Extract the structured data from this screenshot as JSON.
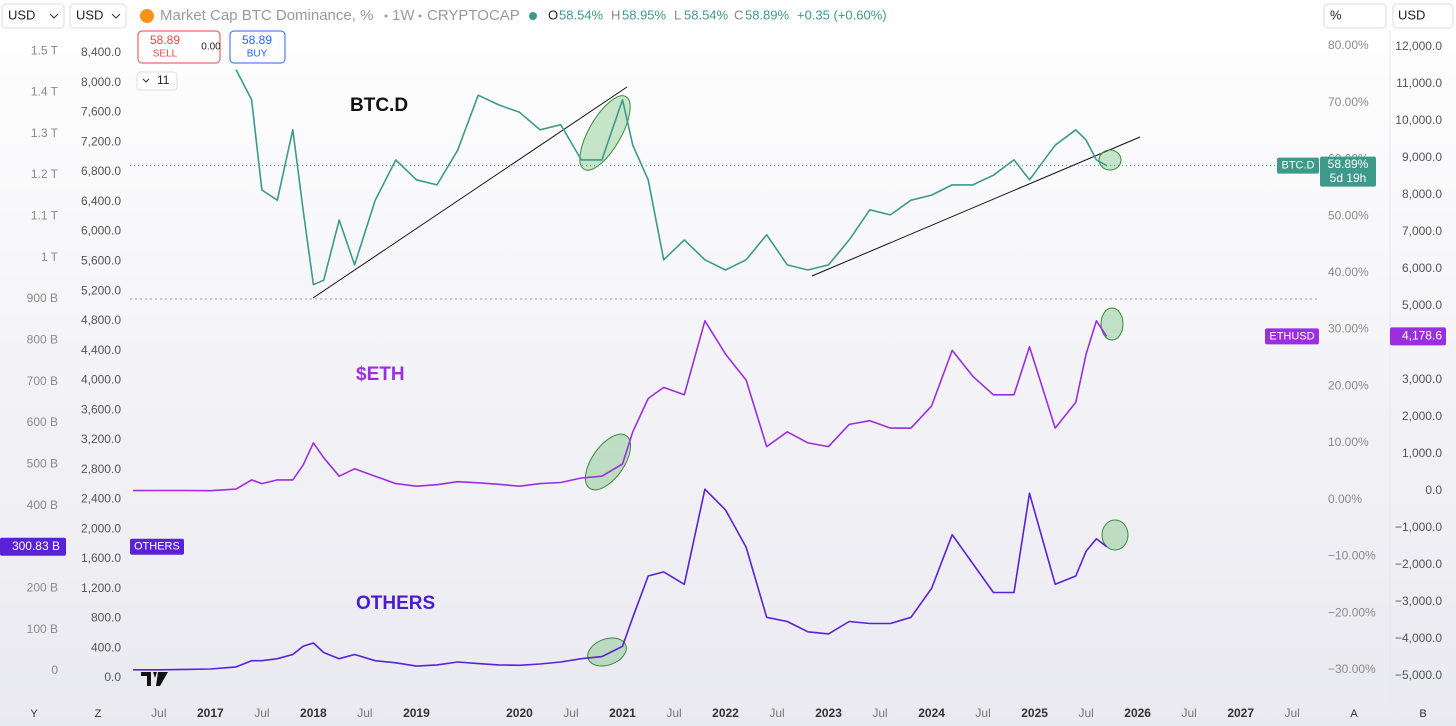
{
  "toolbar": {
    "currency_left": "USD",
    "currency_second": "USD",
    "title": "Market Cap BTC Dominance, %",
    "interval": "1W",
    "exchange": "CRYPTOCAP",
    "open_label": "O",
    "open": "58.54%",
    "high_label": "H",
    "high": "58.95%",
    "low_label": "L",
    "low": "58.54%",
    "close_label": "C",
    "close": "58.89%",
    "change": "+0.35 (+0.60%)",
    "scale_mode": "%",
    "currency_right": "USD"
  },
  "trade": {
    "sell_price": "58.89",
    "sell_label": "SELL",
    "spread": "0.00",
    "buy_price": "58.89",
    "buy_label": "BUY",
    "indicators": "11"
  },
  "bottom": {
    "left_y": "Y",
    "left_z": "Z",
    "right_a": "A",
    "right_b": "B"
  },
  "chart_data": {
    "type": "line",
    "annotations": [
      "BTC.D",
      "$ETH",
      "OTHERS"
    ],
    "x": [
      2016.25,
      2016.5,
      2016.75,
      2017.0,
      2017.25,
      2017.4,
      2017.5,
      2017.65,
      2017.8,
      2017.9,
      2018.0,
      2018.1,
      2018.25,
      2018.4,
      2018.6,
      2018.8,
      2019.0,
      2019.2,
      2019.4,
      2019.6,
      2019.8,
      2020.0,
      2020.2,
      2020.4,
      2020.6,
      2020.8,
      2021.0,
      2021.1,
      2021.25,
      2021.4,
      2021.6,
      2021.8,
      2022.0,
      2022.2,
      2022.4,
      2022.6,
      2022.8,
      2023.0,
      2023.2,
      2023.4,
      2023.6,
      2023.8,
      2024.0,
      2024.2,
      2024.4,
      2024.6,
      2024.8,
      2024.95,
      2025.2,
      2025.4,
      2025.5,
      2025.6,
      2025.7
    ],
    "xlim": [
      2016.22,
      2027.77
    ],
    "xticks": [
      {
        "value": 2016.5,
        "label": "Jul"
      },
      2017,
      {
        "value": 2017.5,
        "label": "Jul"
      },
      2018,
      {
        "value": 2018.5,
        "label": "Jul"
      },
      2019,
      2020,
      {
        "value": 2020.5,
        "label": "Jul"
      },
      2021,
      {
        "value": 2021.5,
        "label": "Jul"
      },
      2022,
      {
        "value": 2022.5,
        "label": "Jul"
      },
      2023,
      {
        "value": 2023.5,
        "label": "Jul"
      },
      2024,
      {
        "value": 2024.5,
        "label": "Jul"
      },
      2025,
      {
        "value": 2025.5,
        "label": "Jul"
      },
      2026,
      {
        "value": 2026.5,
        "label": "Jul"
      },
      2027,
      {
        "value": 2027.5,
        "label": "Jul"
      }
    ],
    "series": [
      {
        "name": "BTC.D",
        "color": "#3d9a8b",
        "axis": "y",
        "last_value_label": "58.89%",
        "countdown": "5d 19h",
        "values": [
          null,
          null,
          null,
          null,
          75.8,
          70.5,
          54.6,
          52.8,
          65.2,
          51.1,
          37.9,
          38.7,
          49.3,
          41.4,
          52.8,
          59.9,
          56.4,
          55.5,
          61.6,
          71.3,
          69.6,
          68.3,
          65.2,
          66.1,
          59.9,
          59.9,
          70.5,
          62.5,
          56.4,
          42.3,
          45.8,
          42.3,
          40.5,
          42.3,
          46.7,
          41.4,
          40.5,
          41.4,
          45.8,
          51.1,
          50.2,
          52.8,
          53.7,
          55.5,
          55.5,
          57.2,
          59.9,
          56.4,
          62.5,
          65.2,
          63.4,
          59.9,
          58.89
        ]
      },
      {
        "name": "ETHUSD",
        "color": "#9b2fe0",
        "axis": "y2",
        "last_value_label": "4,178.6",
        "values": [
          10,
          12,
          12,
          8,
          50,
          300,
          200,
          300,
          300,
          700,
          1300,
          900,
          400,
          600,
          400,
          200,
          130,
          170,
          250,
          220,
          180,
          130,
          200,
          230,
          350,
          400,
          730,
          1600,
          2500,
          2800,
          2600,
          4600,
          3700,
          3000,
          1200,
          1600,
          1300,
          1200,
          1800,
          1900,
          1700,
          1700,
          2300,
          3800,
          3100,
          2600,
          2600,
          3900,
          1700,
          2400,
          3700,
          4600,
          4178.6
        ]
      },
      {
        "name": "OTHERS",
        "color": "#5a22d8",
        "axis": "y3",
        "last_value_label": "300.83 B",
        "values": [
          3000000000,
          3000000000,
          4000000000,
          5000000000,
          10000000000,
          25000000000,
          25000000000,
          30000000000,
          40000000000,
          60000000000,
          68000000000,
          45000000000,
          30000000000,
          40000000000,
          25000000000,
          20000000000,
          12000000000,
          15000000000,
          22000000000,
          18000000000,
          15000000000,
          14000000000,
          17000000000,
          22000000000,
          30000000000,
          35000000000,
          60000000000,
          130000000000,
          230000000000,
          240000000000,
          210000000000,
          440000000000,
          390000000000,
          300000000000,
          130000000000,
          120000000000,
          95000000000,
          90000000000,
          120000000000,
          115000000000,
          115000000000,
          130000000000,
          200000000000,
          330000000000,
          260000000000,
          190000000000,
          190000000000,
          430000000000,
          210000000000,
          230000000000,
          290000000000,
          320000000000,
          300830000000
        ]
      }
    ],
    "ylim": [
      -35.3,
      82.8
    ],
    "yticks": [
      {
        "value": 80,
        "label": "80.00%"
      },
      {
        "value": 70,
        "label": "70.00%"
      },
      {
        "value": 60,
        "label": "60.00%"
      },
      {
        "value": 50,
        "label": "50.00%"
      },
      {
        "value": 40,
        "label": "40.00%"
      },
      {
        "value": 30,
        "label": "30.00%"
      },
      {
        "value": 20,
        "label": "20.00%"
      },
      {
        "value": 10,
        "label": "10.00%"
      },
      {
        "value": 0,
        "label": "0.00%"
      },
      {
        "value": -10,
        "label": "−10.00%"
      },
      {
        "value": -20,
        "label": "−20.00%"
      },
      {
        "value": -30,
        "label": "−30.00%"
      }
    ],
    "y2lim": [
      -5650,
      12460
    ],
    "y2ticks": [
      {
        "value": 12000,
        "label": "12,000.0"
      },
      {
        "value": 11000,
        "label": "11,000.0"
      },
      {
        "value": 10000,
        "label": "10,000.0"
      },
      {
        "value": 9000,
        "label": "9,000.0"
      },
      {
        "value": 8000,
        "label": "8,000.0"
      },
      {
        "value": 7000,
        "label": "7,000.0"
      },
      {
        "value": 6000,
        "label": "6,000.0"
      },
      {
        "value": 5000,
        "label": "5,000.0"
      },
      {
        "value": 3000,
        "label": "3,000.0"
      },
      {
        "value": 2000,
        "label": "2,000.0"
      },
      {
        "value": 1000,
        "label": "1,000.0"
      },
      {
        "value": 0,
        "label": "0.0"
      },
      {
        "value": -1000,
        "label": "−1,000.0"
      },
      {
        "value": -2000,
        "label": "−2,000.0"
      },
      {
        "value": -3000,
        "label": "−3,000.0"
      },
      {
        "value": -4000,
        "label": "−4,000.0"
      },
      {
        "value": -5000,
        "label": "−5,000.0"
      }
    ],
    "y3lim": [
      -70000000000,
      1551000000000
    ],
    "y3ticks": [
      {
        "value": 1500000000000,
        "label": "1.5 T"
      },
      {
        "value": 1400000000000,
        "label": "1.4 T"
      },
      {
        "value": 1300000000000,
        "label": "1.3 T"
      },
      {
        "value": 1200000000000,
        "label": "1.2 T"
      },
      {
        "value": 1100000000000,
        "label": "1.1 T"
      },
      {
        "value": 1000000000000,
        "label": "1 T"
      },
      {
        "value": 900000000000,
        "label": "900 B"
      },
      {
        "value": 800000000000,
        "label": "800 B"
      },
      {
        "value": 700000000000,
        "label": "700 B"
      },
      {
        "value": 600000000000,
        "label": "600 B"
      },
      {
        "value": 500000000000,
        "label": "500 B"
      },
      {
        "value": 400000000000,
        "label": "400 B"
      },
      {
        "value": 200000000000,
        "label": "200 B"
      },
      {
        "value": 100000000000,
        "label": "100 B"
      },
      0
    ],
    "y4lim": [
      -296,
      8709
    ],
    "y4ticks": [
      {
        "value": 8400,
        "label": "8,400.0"
      },
      {
        "value": 8000,
        "label": "8,000.0"
      },
      {
        "value": 7600,
        "label": "7,600.0"
      },
      {
        "value": 7200,
        "label": "7,200.0"
      },
      {
        "value": 6800,
        "label": "6,800.0"
      },
      {
        "value": 6400,
        "label": "6,400.0"
      },
      {
        "value": 6000,
        "label": "6,000.0"
      },
      {
        "value": 5600,
        "label": "5,600.0"
      },
      {
        "value": 5200,
        "label": "5,200.0"
      },
      {
        "value": 4800,
        "label": "4,800.0"
      },
      {
        "value": 4400,
        "label": "4,400.0"
      },
      {
        "value": 4000,
        "label": "4,000.0"
      },
      {
        "value": 3600,
        "label": "3,600.0"
      },
      {
        "value": 3200,
        "label": "3,200.0"
      },
      {
        "value": 2800,
        "label": "2,800.0"
      },
      {
        "value": 2400,
        "label": "2,400.0"
      },
      {
        "value": 2000,
        "label": "2,000.0"
      },
      {
        "value": 1600,
        "label": "1,600.0"
      },
      {
        "value": 1200,
        "label": "1,200.0"
      },
      {
        "value": 800,
        "label": "800.0"
      },
      {
        "value": 400,
        "label": "400.0"
      },
      {
        "value": 0,
        "label": "0.0"
      }
    ]
  }
}
